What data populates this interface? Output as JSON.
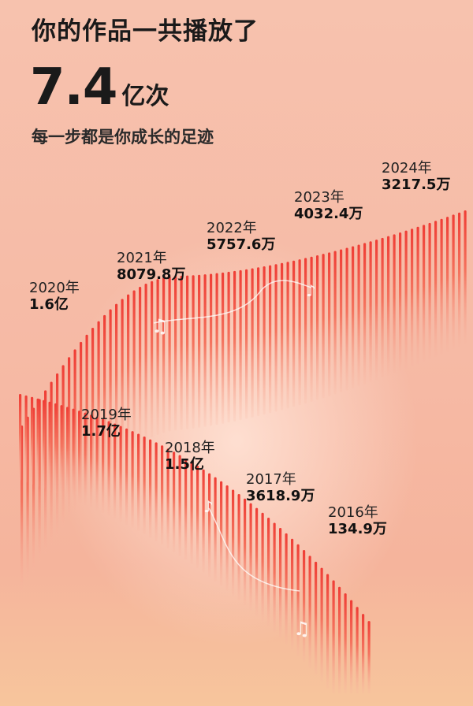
{
  "header": {
    "title": "你的作品一共播放了",
    "total_value": "7.4",
    "total_unit": "亿次",
    "subtitle": "每一步都是你成长的足迹"
  },
  "years": [
    {
      "year": "2024年",
      "plays": "3217.5万"
    },
    {
      "year": "2023年",
      "plays": "4032.4万"
    },
    {
      "year": "2022年",
      "plays": "5757.6万"
    },
    {
      "year": "2021年",
      "plays": "8079.8万"
    },
    {
      "year": "2020年",
      "plays": "1.6亿"
    },
    {
      "year": "2019年",
      "plays": "1.7亿"
    },
    {
      "year": "2018年",
      "plays": "1.5亿"
    },
    {
      "year": "2017年",
      "plays": "3618.9万"
    },
    {
      "year": "2016年",
      "plays": "134.9万"
    }
  ],
  "colors": {
    "bar_top": "#f0433a",
    "bar_bottom": "#f9b7a3",
    "background": "#f6bda8"
  }
}
